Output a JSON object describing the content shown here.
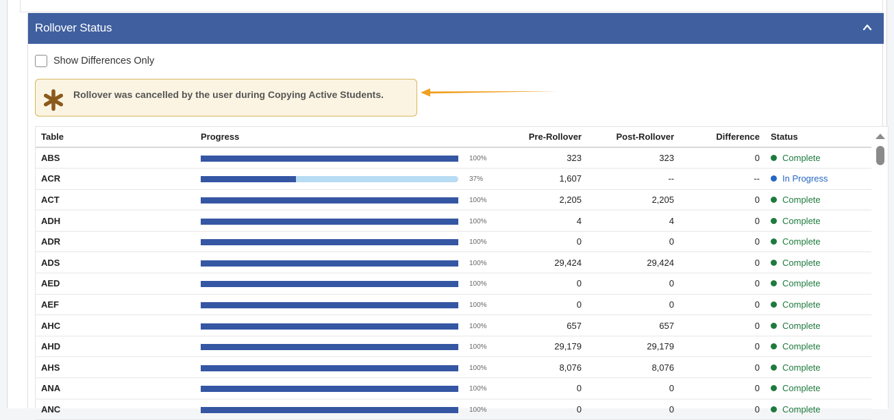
{
  "panel": {
    "title": "Rollover Status",
    "collapse_icon": "chevron-up-icon"
  },
  "filter": {
    "show_diff_label": "Show Differences Only",
    "checked": false
  },
  "alert": {
    "icon": "asterisk-icon",
    "message": "Rollover was cancelled by the user during Copying Active Students.",
    "color": "#f0a020"
  },
  "table": {
    "headers": {
      "table": "Table",
      "progress": "Progress",
      "pre": "Pre-Rollover",
      "post": "Post-Rollover",
      "diff": "Difference",
      "status": "Status"
    },
    "colors": {
      "complete": "#1e7a3d",
      "in_progress": "#2466c6",
      "bar_fill": "#3556a3",
      "bar_track": "#b8dcf3"
    },
    "rows": [
      {
        "name": "ABS",
        "progress": 100,
        "pct": "100%",
        "pre": "323",
        "post": "323",
        "diff": "0",
        "status": "Complete",
        "state": "complete"
      },
      {
        "name": "ACR",
        "progress": 37,
        "pct": "37%",
        "pre": "1,607",
        "post": "--",
        "diff": "--",
        "status": "In Progress",
        "state": "progress"
      },
      {
        "name": "ACT",
        "progress": 100,
        "pct": "100%",
        "pre": "2,205",
        "post": "2,205",
        "diff": "0",
        "status": "Complete",
        "state": "complete"
      },
      {
        "name": "ADH",
        "progress": 100,
        "pct": "100%",
        "pre": "4",
        "post": "4",
        "diff": "0",
        "status": "Complete",
        "state": "complete"
      },
      {
        "name": "ADR",
        "progress": 100,
        "pct": "100%",
        "pre": "0",
        "post": "0",
        "diff": "0",
        "status": "Complete",
        "state": "complete"
      },
      {
        "name": "ADS",
        "progress": 100,
        "pct": "100%",
        "pre": "29,424",
        "post": "29,424",
        "diff": "0",
        "status": "Complete",
        "state": "complete"
      },
      {
        "name": "AED",
        "progress": 100,
        "pct": "100%",
        "pre": "0",
        "post": "0",
        "diff": "0",
        "status": "Complete",
        "state": "complete"
      },
      {
        "name": "AEF",
        "progress": 100,
        "pct": "100%",
        "pre": "0",
        "post": "0",
        "diff": "0",
        "status": "Complete",
        "state": "complete"
      },
      {
        "name": "AHC",
        "progress": 100,
        "pct": "100%",
        "pre": "657",
        "post": "657",
        "diff": "0",
        "status": "Complete",
        "state": "complete"
      },
      {
        "name": "AHD",
        "progress": 100,
        "pct": "100%",
        "pre": "29,179",
        "post": "29,179",
        "diff": "0",
        "status": "Complete",
        "state": "complete"
      },
      {
        "name": "AHS",
        "progress": 100,
        "pct": "100%",
        "pre": "8,076",
        "post": "8,076",
        "diff": "0",
        "status": "Complete",
        "state": "complete"
      },
      {
        "name": "ANA",
        "progress": 100,
        "pct": "100%",
        "pre": "0",
        "post": "0",
        "diff": "0",
        "status": "Complete",
        "state": "complete"
      },
      {
        "name": "ANC",
        "progress": 100,
        "pct": "100%",
        "pre": "0",
        "post": "0",
        "diff": "0",
        "status": "Complete",
        "state": "complete"
      }
    ]
  }
}
